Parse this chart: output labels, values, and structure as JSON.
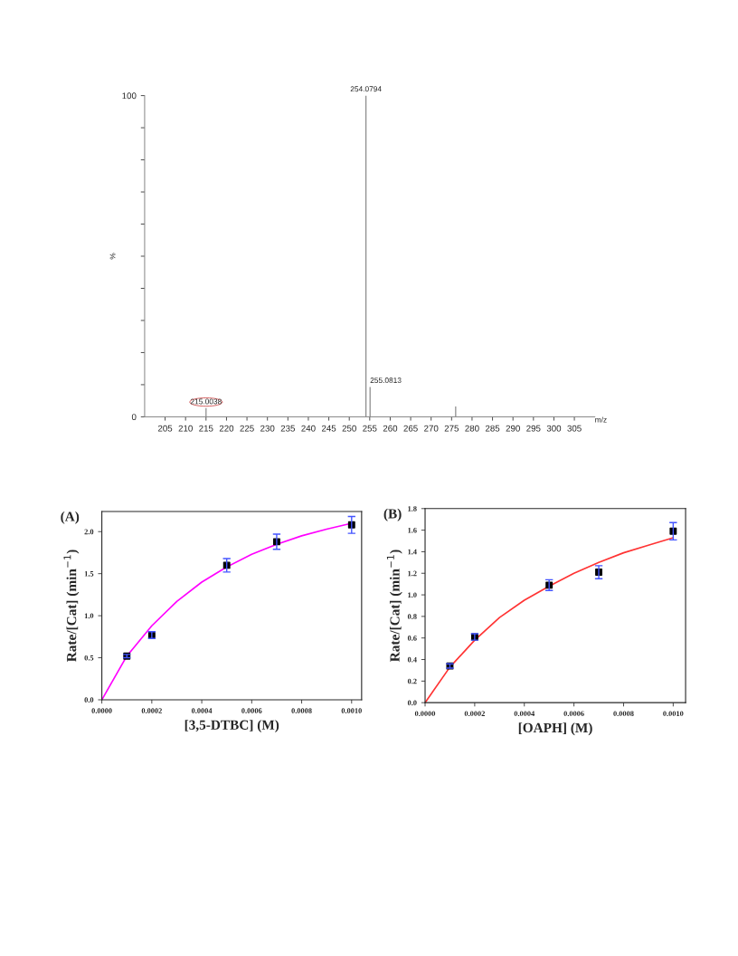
{
  "chart_data": [
    {
      "type": "bar",
      "xlabel": "m/z",
      "ylabel": "%",
      "x": [
        215.0038,
        254.0794,
        255.0813,
        276.0
      ],
      "values": [
        2.7,
        100,
        9.3,
        3.2
      ],
      "color": "#808080",
      "xlim": [
        200,
        310
      ],
      "ylim": [
        0,
        100
      ],
      "xticks": [
        205,
        210,
        215,
        220,
        225,
        230,
        235,
        240,
        245,
        250,
        255,
        260,
        265,
        270,
        275,
        280,
        285,
        290,
        295,
        300,
        305
      ],
      "yticks": [
        0,
        {
          "value": 10,
          "label": null
        },
        {
          "value": 20,
          "label": null
        },
        {
          "value": 30,
          "label": null
        },
        {
          "value": 40,
          "label": null
        },
        {
          "value": 50,
          "label": null
        },
        {
          "value": 60,
          "label": null
        },
        {
          "value": 70,
          "label": null
        },
        {
          "value": 80,
          "label": null
        },
        {
          "value": 90,
          "label": null
        },
        100
      ],
      "annotations": [
        {
          "text": "254.0794",
          "x": 254.0794,
          "y": 100
        },
        {
          "text": "255.0813",
          "x": 255.0813,
          "y": 9.3
        },
        {
          "text": "215.0038",
          "x": 215.0038,
          "y": 2.7
        }
      ],
      "grid": false,
      "legend": false
    },
    {
      "type": "scatter",
      "title": "(A)",
      "xlabel": "[3,5-DTBC] (M)",
      "ylabel": "Rate/[Cat] (min$^{−1}$)",
      "xlim": [
        0,
        0.00104
      ],
      "ylim": [
        0,
        2.24
      ],
      "xticks": [
        {
          "value": 0,
          "label": "0.0000"
        },
        {
          "value": 0.0002,
          "label": "0.0002"
        },
        {
          "value": 0.0004,
          "label": "0.0004"
        },
        {
          "value": 0.0006,
          "label": "0.0006"
        },
        {
          "value": 0.0008,
          "label": "0.0008"
        },
        {
          "value": 0.001,
          "label": "0.0010"
        }
      ],
      "yticks": [
        {
          "value": 0,
          "label": "0.0"
        },
        {
          "value": 0.5,
          "label": "0.5"
        },
        {
          "value": 1,
          "label": "1.0"
        },
        {
          "value": 1.5,
          "label": "1.5"
        },
        {
          "value": 2,
          "label": "2.0"
        }
      ],
      "series": [
        {
          "type": "line",
          "color": "#ff00ff",
          "x": [
            0,
            0.0001,
            0.0002,
            0.0003,
            0.0004,
            0.0005,
            0.0006,
            0.0007,
            0.0008,
            0.0009,
            0.001
          ],
          "values": [
            0,
            0.52,
            0.88,
            1.17,
            1.4,
            1.58,
            1.73,
            1.85,
            1.95,
            2.03,
            2.1
          ]
        },
        {
          "type": "scatter",
          "color": "#000000",
          "marker": "square",
          "x": [
            0.0001,
            0.0002,
            0.0005,
            0.0007,
            0.001
          ],
          "values": [
            0.52,
            0.77,
            1.6,
            1.88,
            2.08
          ],
          "errors": [
            0.02,
            0.04,
            0.08,
            0.09,
            0.1
          ]
        }
      ],
      "grid": false,
      "legend": false
    },
    {
      "type": "scatter",
      "title": "(B)",
      "xlabel": "[OAPH] (M)",
      "ylabel": "Rate/[Cat] (min$^{−1}$)",
      "xlim": [
        0,
        0.00105
      ],
      "ylim": [
        0,
        1.8
      ],
      "xticks": [
        {
          "value": 0,
          "label": "0.0000"
        },
        {
          "value": 0.0002,
          "label": "0.0002"
        },
        {
          "value": 0.0004,
          "label": "0.0004"
        },
        {
          "value": 0.0006,
          "label": "0.0006"
        },
        {
          "value": 0.0008,
          "label": "0.0008"
        },
        {
          "value": 0.001,
          "label": "0.0010"
        }
      ],
      "yticks": [
        {
          "value": 0,
          "label": "0.0"
        },
        {
          "value": 0.2,
          "label": "0.2"
        },
        {
          "value": 0.4,
          "label": "0.4"
        },
        {
          "value": 0.6,
          "label": "0.6"
        },
        {
          "value": 0.8,
          "label": "0.8"
        },
        {
          "value": 1,
          "label": "1.0"
        },
        {
          "value": 1.2,
          "label": "1.2"
        },
        {
          "value": 1.4,
          "label": "1.4"
        },
        {
          "value": 1.6,
          "label": "1.6"
        },
        {
          "value": 1.8,
          "label": "1.8"
        }
      ],
      "series": [
        {
          "type": "line",
          "color": "#ff3333",
          "x": [
            0,
            0.0001,
            0.0002,
            0.0003,
            0.0004,
            0.0005,
            0.0006,
            0.0007,
            0.0008,
            0.0009,
            0.001
          ],
          "values": [
            0,
            0.33,
            0.58,
            0.79,
            0.95,
            1.08,
            1.2,
            1.3,
            1.39,
            1.46,
            1.53
          ]
        },
        {
          "type": "scatter",
          "color": "#000000",
          "marker": "square",
          "x": [
            0.0001,
            0.0002,
            0.0005,
            0.0007,
            0.001
          ],
          "values": [
            0.34,
            0.61,
            1.09,
            1.21,
            1.59
          ],
          "errors": [
            0.02,
            0.03,
            0.05,
            0.06,
            0.08
          ]
        }
      ],
      "grid": false,
      "legend": false
    }
  ]
}
